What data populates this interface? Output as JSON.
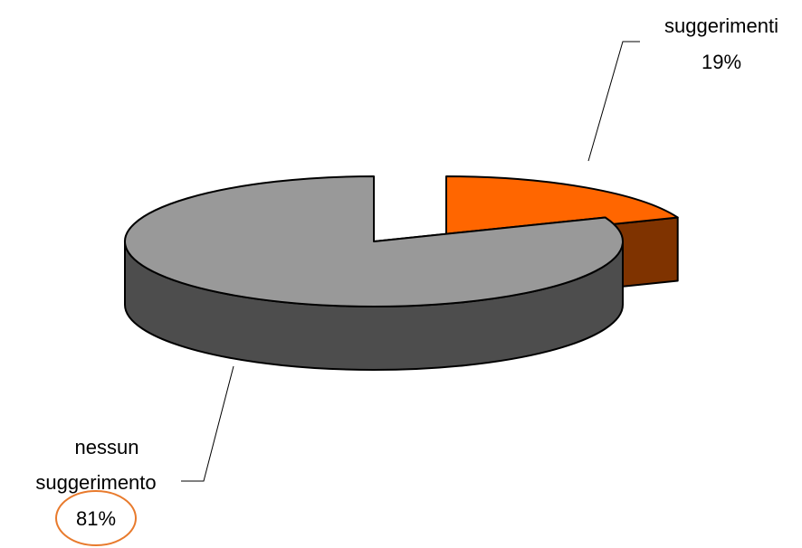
{
  "chart_data": {
    "type": "pie",
    "style": "3d-exploded",
    "legend": "none",
    "slices": [
      {
        "category": "suggerimenti",
        "percent_label": "19%",
        "value": 19,
        "color": "#ff6600",
        "side_color": "#7f3300",
        "exploded": true
      },
      {
        "category_lines": [
          "nessun",
          "suggerimento"
        ],
        "percent_label": "81%",
        "value": 81,
        "color": "#999999",
        "side_color": "#4d4d4d",
        "exploded": false,
        "highlight_circle": "#e87a2c"
      }
    ]
  }
}
